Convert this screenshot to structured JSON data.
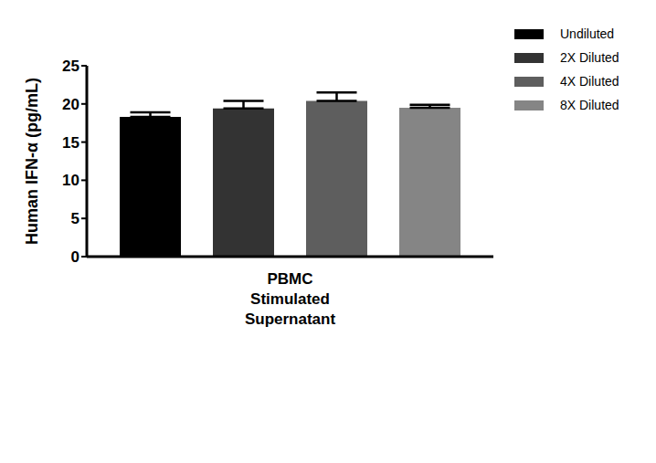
{
  "chart_data": {
    "type": "bar",
    "categories": [
      "PBMC Stimulated Supernatant"
    ],
    "y_label": "Human IFN-α (pg/mL)",
    "ylim": [
      0,
      25
    ],
    "yticks": [
      0,
      5,
      10,
      15,
      20,
      25
    ],
    "grid": false,
    "legend": "upper right",
    "series": [
      {
        "name": "Undiluted",
        "color": "#000000",
        "values": [
          18.3
        ],
        "error": [
          0.6
        ]
      },
      {
        "name": "2X Diluted",
        "color": "#333333",
        "values": [
          19.4
        ],
        "error": [
          1.0
        ]
      },
      {
        "name": "4X Diluted",
        "color": "#5e5e5e",
        "values": [
          20.4
        ],
        "error": [
          1.1
        ]
      },
      {
        "name": "8X Diluted",
        "color": "#858585",
        "values": [
          19.5
        ],
        "error": [
          0.4
        ]
      }
    ]
  }
}
